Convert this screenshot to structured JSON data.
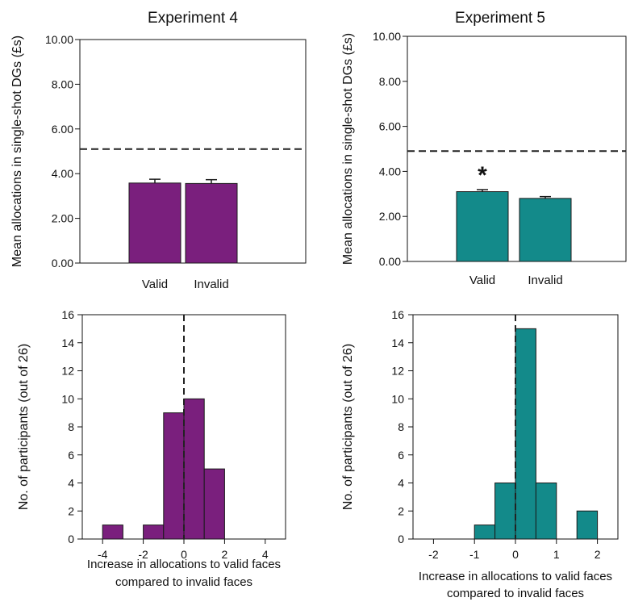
{
  "colors": {
    "experiment_4": "#7a1f7d",
    "experiment_5": "#138a8a",
    "axis": "#111111",
    "reference_line": "#222222"
  },
  "chart_data": [
    {
      "id": "exp4_bar",
      "type": "bar",
      "title": "Experiment 4",
      "ylabel": "Mean allocations in single-shot DGs (£s)",
      "xlabel": "",
      "categories": [
        "Valid",
        "Invalid"
      ],
      "values": [
        3.58,
        3.56
      ],
      "errors": [
        0.17,
        0.17
      ],
      "ylim": [
        0,
        10
      ],
      "yticks": [
        "0.00",
        "2.00",
        "4.00",
        "6.00",
        "8.00",
        "10.00"
      ],
      "reference_line": 5.1,
      "annotations": [],
      "color": "#7a1f7d"
    },
    {
      "id": "exp5_bar",
      "type": "bar",
      "title": "Experiment 5",
      "ylabel": "Mean allocations in single-shot DGs (£s)",
      "xlabel": "",
      "categories": [
        "Valid",
        "Invalid"
      ],
      "values": [
        3.1,
        2.8
      ],
      "errors": [
        0.09,
        0.08
      ],
      "ylim": [
        0,
        10
      ],
      "yticks": [
        "0.00",
        "2.00",
        "4.00",
        "6.00",
        "8.00",
        "10.00"
      ],
      "reference_line": 4.9,
      "annotations": [
        {
          "category": "Valid",
          "text": "*"
        }
      ],
      "color": "#138a8a"
    },
    {
      "id": "exp4_hist",
      "type": "bar",
      "title": "",
      "ylabel": "No. of participants (out of 26)",
      "xlabel": [
        "Increase in allocations to valid faces",
        "compared to invalid faces"
      ],
      "bins": [
        {
          "from": -4,
          "to": -3,
          "count": 1
        },
        {
          "from": -3,
          "to": -2,
          "count": 0
        },
        {
          "from": -2,
          "to": -1,
          "count": 1
        },
        {
          "from": -1,
          "to": 0,
          "count": 9
        },
        {
          "from": 0,
          "to": 1,
          "count": 10
        },
        {
          "from": 1,
          "to": 2,
          "count": 5
        }
      ],
      "xlim": [
        -5,
        5
      ],
      "xticks": [
        -4,
        -2,
        0,
        2,
        4
      ],
      "ylim": [
        0,
        16
      ],
      "yticks": [
        0,
        2,
        4,
        6,
        8,
        10,
        12,
        14,
        16
      ],
      "reference_line_x": 0,
      "color": "#7a1f7d"
    },
    {
      "id": "exp5_hist",
      "type": "bar",
      "title": "",
      "ylabel": "No. of participants (out of 26)",
      "xlabel": [
        "Increase in allocations to valid faces",
        "compared to invalid faces"
      ],
      "bins": [
        {
          "from": -1,
          "to": -0.5,
          "count": 1
        },
        {
          "from": -0.5,
          "to": 0,
          "count": 4
        },
        {
          "from": 0,
          "to": 0.5,
          "count": 15
        },
        {
          "from": 0.5,
          "to": 1,
          "count": 4
        },
        {
          "from": 1,
          "to": 1.5,
          "count": 0
        },
        {
          "from": 1.5,
          "to": 2,
          "count": 2
        }
      ],
      "xlim": [
        -2.5,
        2.5
      ],
      "xticks": [
        -2,
        -1,
        0,
        1,
        2
      ],
      "ylim": [
        0,
        16
      ],
      "yticks": [
        0,
        2,
        4,
        6,
        8,
        10,
        12,
        14,
        16
      ],
      "reference_line_x": 0,
      "color": "#138a8a"
    }
  ]
}
